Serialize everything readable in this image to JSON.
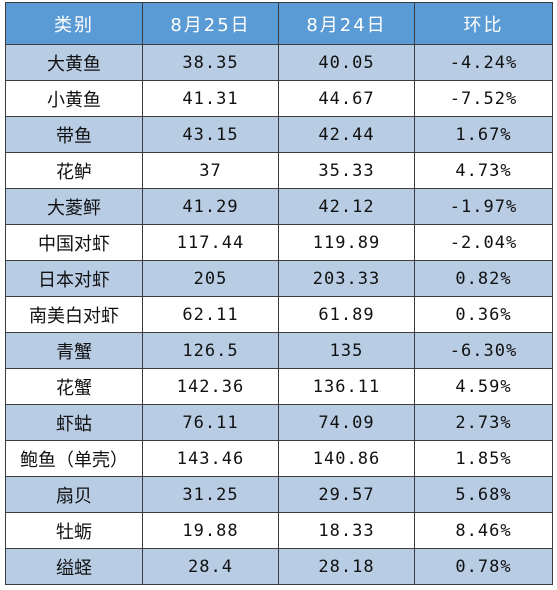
{
  "chart_data": {
    "type": "table",
    "columns": [
      "类别",
      "8月25日",
      "8月24日",
      "环比"
    ],
    "rows": [
      [
        "大黄鱼",
        "38.35",
        "40.05",
        "-4.24%"
      ],
      [
        "小黄鱼",
        "41.31",
        "44.67",
        "-7.52%"
      ],
      [
        "带鱼",
        "43.15",
        "42.44",
        "1.67%"
      ],
      [
        "花鲈",
        "37",
        "35.33",
        "4.73%"
      ],
      [
        "大菱鲆",
        "41.29",
        "42.12",
        "-1.97%"
      ],
      [
        "中国对虾",
        "117.44",
        "119.89",
        "-2.04%"
      ],
      [
        "日本对虾",
        "205",
        "203.33",
        "0.82%"
      ],
      [
        "南美白对虾",
        "62.11",
        "61.89",
        "0.36%"
      ],
      [
        "青蟹",
        "126.5",
        "135",
        "-6.30%"
      ],
      [
        "花蟹",
        "142.36",
        "136.11",
        "4.59%"
      ],
      [
        "虾蛄",
        "76.11",
        "74.09",
        "2.73%"
      ],
      [
        "鲍鱼（单壳）",
        "143.46",
        "140.86",
        "1.85%"
      ],
      [
        "扇贝",
        "31.25",
        "29.57",
        "5.68%"
      ],
      [
        "牡蛎",
        "19.88",
        "18.33",
        "8.46%"
      ],
      [
        "缢蛏",
        "28.4",
        "28.18",
        "0.78%"
      ]
    ]
  },
  "colors": {
    "header_bg": "#5B9BD5",
    "header_text": "#FFFFFF",
    "stripe_bg": "#B8CCE4",
    "plain_bg": "#FFFFFF"
  }
}
